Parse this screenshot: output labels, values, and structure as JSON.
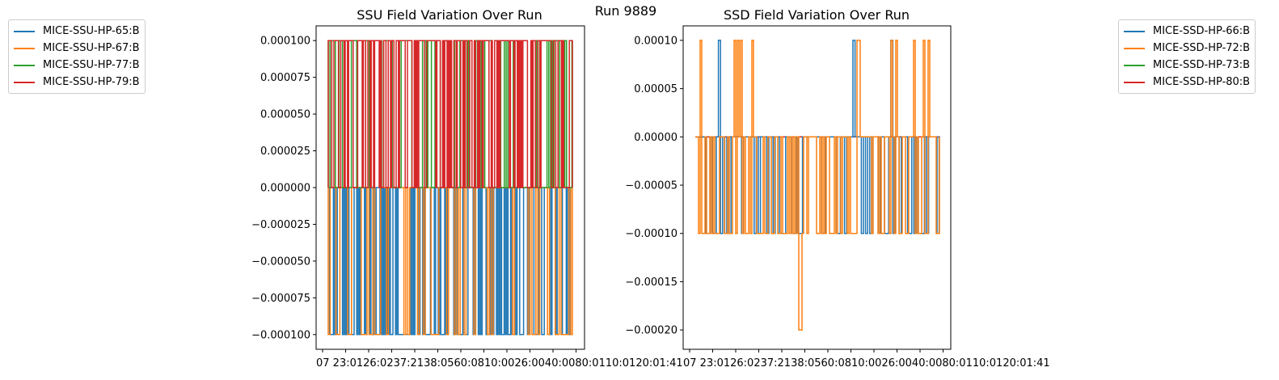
{
  "figure": {
    "suptitle": "Run 9889"
  },
  "colors": {
    "c0": "#1f77b4",
    "c1": "#ff7f0e",
    "c2": "#2ca02c",
    "c3": "#d62728"
  },
  "chart_data": [
    {
      "type": "line",
      "title": "SSU Field Variation Over Run",
      "xlabel": "",
      "ylabel": "",
      "ylim": [
        -0.00011,
        0.00011
      ],
      "yticks": [
        "0.000100",
        "0.000075",
        "0.000050",
        "0.000025",
        "0.000000",
        "−0.000025",
        "−0.000050",
        "−0.000075",
        "−0.000100"
      ],
      "ytick_values": [
        0.0001,
        7.5e-05,
        5e-05,
        2.5e-05,
        0,
        -2.5e-05,
        -5e-05,
        -7.5e-05,
        -0.0001
      ],
      "xticks_text": "07 23:0126:0237:2138:0560:0810:0026:0040:0080:0110:0120:01:41",
      "series": [
        {
          "name": "MICE-SSU-HP-65:B",
          "color": "#1f77b4",
          "pattern": "fills 0 to -0.0001",
          "values_levels": [
            0,
            -0.0001
          ]
        },
        {
          "name": "MICE-SSU-HP-67:B",
          "color": "#ff7f0e",
          "pattern": "toggles 0 / -0.0001",
          "values_levels": [
            0,
            -0.0001
          ]
        },
        {
          "name": "MICE-SSU-HP-77:B",
          "color": "#2ca02c",
          "pattern": "toggles 0 / 0.0001",
          "values_levels": [
            0,
            0.0001
          ]
        },
        {
          "name": "MICE-SSU-HP-79:B",
          "color": "#d62728",
          "pattern": "fills 0 to 0.0001",
          "values_levels": [
            0,
            0.0001
          ]
        }
      ],
      "legend_position": "outside-left"
    },
    {
      "type": "line",
      "title": "SSD Field Variation Over Run",
      "xlabel": "",
      "ylabel": "",
      "ylim": [
        -0.00022,
        0.000115
      ],
      "yticks": [
        "0.00010",
        "0.00005",
        "0.00000",
        "−0.00005",
        "−0.00010",
        "−0.00015",
        "−0.00020"
      ],
      "ytick_values": [
        0.0001,
        5e-05,
        0,
        -5e-05,
        -0.0001,
        -0.00015,
        -0.0002
      ],
      "xticks_text": "07 23:0126:0237:2138:0560:0810:0026:0040:0080:0110:0120:01:41",
      "series": [
        {
          "name": "MICE-SSD-HP-66:B",
          "color": "#1f77b4",
          "values_levels": [
            0,
            0.0001,
            -0.0001
          ]
        },
        {
          "name": "MICE-SSD-HP-72:B",
          "color": "#ff7f0e",
          "values_levels": [
            0,
            0.0001,
            -0.0001,
            -0.0002
          ]
        },
        {
          "name": "MICE-SSD-HP-73:B",
          "color": "#2ca02c",
          "values_levels": [
            0
          ]
        },
        {
          "name": "MICE-SSD-HP-80:B",
          "color": "#d62728",
          "values_levels": [
            0
          ]
        }
      ],
      "legend_position": "outside-right"
    }
  ]
}
